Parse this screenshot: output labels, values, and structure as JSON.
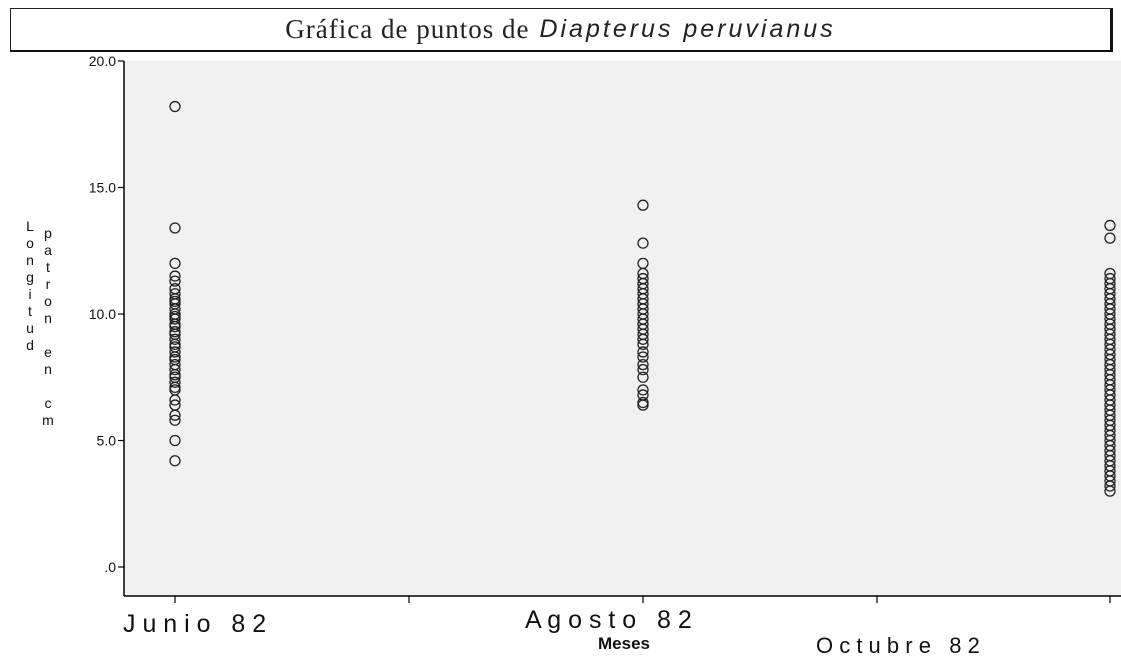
{
  "chart_data": {
    "type": "scatter",
    "title": "Gráfica de puntos de",
    "title_italic": "Diapterus peruvianus",
    "xlabel": "Meses",
    "ylabel_line1": "Longitud",
    "ylabel_line2": "patron en cm",
    "categories": [
      "J u n i o   8 2",
      "A g o s t o   8 2",
      "O c t u b r e   8 2"
    ],
    "ylim": [
      0,
      20
    ],
    "yticks": [
      ".0",
      "5.0",
      "10.0",
      "15.0",
      "20.0"
    ],
    "grid": false,
    "series": [
      {
        "category_index": 0,
        "values": [
          18.2,
          13.4,
          12.0,
          11.5,
          11.3,
          11.0,
          10.8,
          10.6,
          10.5,
          10.4,
          10.2,
          10.0,
          9.9,
          9.8,
          9.6,
          9.5,
          9.3,
          9.2,
          9.0,
          8.8,
          8.7,
          8.5,
          8.3,
          8.2,
          8.0,
          7.8,
          7.6,
          7.5,
          7.3,
          7.1,
          7.0,
          6.6,
          6.4,
          6.0,
          5.8,
          5.0,
          4.2
        ]
      },
      {
        "category_index": 1,
        "values": [
          14.3,
          12.8,
          12.0,
          11.6,
          11.4,
          11.2,
          11.0,
          10.8,
          10.6,
          10.4,
          10.2,
          10.0,
          9.8,
          9.6,
          9.4,
          9.2,
          9.0,
          8.8,
          8.5,
          8.3,
          8.0,
          7.8,
          7.5,
          7.0,
          6.8,
          6.5,
          6.4
        ]
      },
      {
        "category_index": 2,
        "values": [
          13.5,
          13.0,
          11.6,
          11.4,
          11.2,
          11.0,
          10.8,
          10.6,
          10.4,
          10.2,
          10.0,
          9.8,
          9.6,
          9.4,
          9.2,
          9.0,
          8.8,
          8.6,
          8.4,
          8.2,
          8.0,
          7.8,
          7.6,
          7.4,
          7.2,
          7.0,
          6.8,
          6.6,
          6.4,
          6.2,
          6.0,
          5.8,
          5.6,
          5.4,
          5.2,
          5.0,
          4.8,
          4.6,
          4.4,
          4.2,
          4.0,
          3.8,
          3.6,
          3.4,
          3.2,
          3.0
        ]
      }
    ]
  }
}
